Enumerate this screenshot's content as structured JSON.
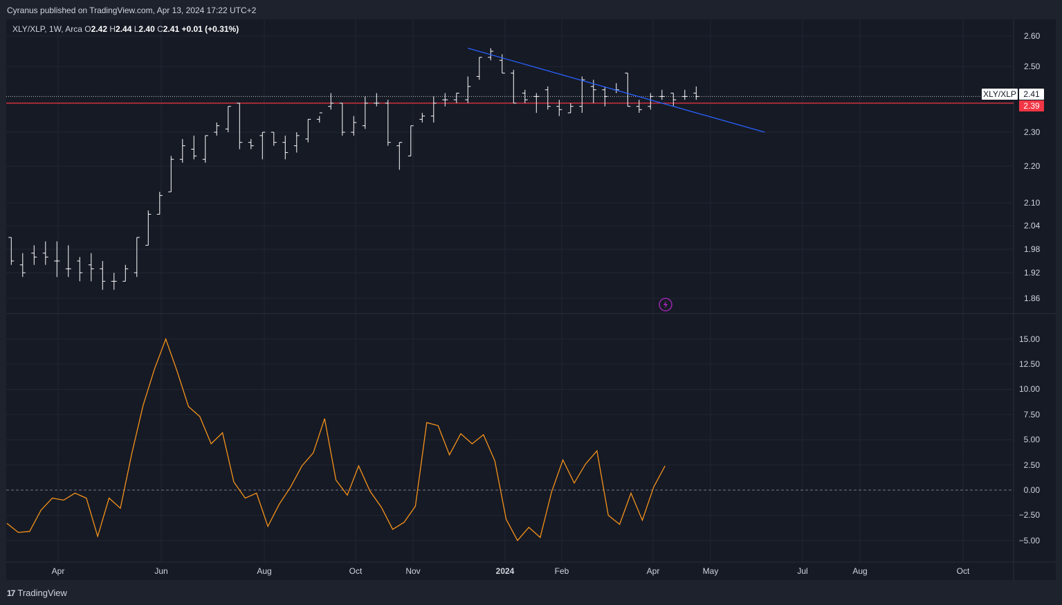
{
  "header": {
    "published_text": "Cyranus published on TradingView.com, Apr 13, 2024 17:22 UTC+2"
  },
  "legend": {
    "symbol": "XLY/XLP, 1W, Arca",
    "open_label": "O",
    "open": "2.42",
    "high_label": "H",
    "high": "2.44",
    "low_label": "L",
    "low": "2.40",
    "close_label": "C",
    "close": "2.41",
    "change": "+0.01 (+0.31%)"
  },
  "price_tags": {
    "symbol_tag": "XLY/XLP",
    "last_value": "2.41",
    "support_value": "2.39"
  },
  "footer": {
    "brand": "TradingView",
    "logo_mark": "17"
  },
  "colors": {
    "background": "#161a25",
    "bars": "#ffffff",
    "support_line": "#f23645",
    "trend_line": "#2962ff",
    "oscillator": "#f7931a",
    "flash_icon": "#9c27b0"
  },
  "icons": {
    "flash": "lightning-icon",
    "logo": "tradingview-logo-icon"
  },
  "chart_data": [
    {
      "type": "ohlc",
      "title": "XLY/XLP, 1W, Arca",
      "x_axis_labels": [
        "Apr",
        "Jun",
        "Aug",
        "Oct",
        "Nov",
        "2024",
        "Feb",
        "Apr",
        "May",
        "Jul",
        "Aug",
        "Oct"
      ],
      "y_axis_labels": [
        "2.60",
        "2.50",
        "2.30",
        "2.20",
        "2.10",
        "2.04",
        "1.98",
        "1.92",
        "1.86"
      ],
      "grid": true,
      "horizontal_line": {
        "value": 2.39,
        "label": "2.39"
      },
      "last_price": {
        "value": 2.41,
        "label": "2.41"
      },
      "trend_line": {
        "from": {
          "bar": 40,
          "value": 2.56
        },
        "to": {
          "bar": 66,
          "value": 2.3
        }
      },
      "bars": [
        [
          2.01,
          2.01,
          1.94,
          1.95
        ],
        [
          1.94,
          1.97,
          1.91,
          1.92
        ],
        [
          1.97,
          1.99,
          1.94,
          1.96
        ],
        [
          1.97,
          2.0,
          1.94,
          1.96
        ],
        [
          1.95,
          2.0,
          1.91,
          1.95
        ],
        [
          1.93,
          1.99,
          1.91,
          1.93
        ],
        [
          1.95,
          1.96,
          1.9,
          1.92
        ],
        [
          1.94,
          1.97,
          1.9,
          1.93
        ],
        [
          1.93,
          1.95,
          1.88,
          1.9
        ],
        [
          1.9,
          1.92,
          1.88,
          1.9
        ],
        [
          1.9,
          1.94,
          1.9,
          1.93
        ],
        [
          1.92,
          2.01,
          1.91,
          2.01
        ],
        [
          1.99,
          2.08,
          1.99,
          2.07
        ],
        [
          2.07,
          2.13,
          2.07,
          2.12
        ],
        [
          2.13,
          2.23,
          2.13,
          2.22
        ],
        [
          2.22,
          2.28,
          2.21,
          2.26
        ],
        [
          2.25,
          2.29,
          2.22,
          2.23
        ],
        [
          2.22,
          2.29,
          2.21,
          2.29
        ],
        [
          2.3,
          2.33,
          2.29,
          2.32
        ],
        [
          2.31,
          2.38,
          2.3,
          2.38
        ],
        [
          2.39,
          2.39,
          2.25,
          2.27
        ],
        [
          2.27,
          2.28,
          2.25,
          2.26
        ],
        [
          2.29,
          2.3,
          2.22,
          2.3
        ],
        [
          2.3,
          2.3,
          2.26,
          2.27
        ],
        [
          2.27,
          2.29,
          2.22,
          2.24
        ],
        [
          2.26,
          2.3,
          2.24,
          2.29
        ],
        [
          2.28,
          2.34,
          2.27,
          2.34
        ],
        [
          2.34,
          2.35,
          2.33,
          2.36
        ],
        [
          2.38,
          2.42,
          2.37,
          2.39
        ],
        [
          2.39,
          2.39,
          2.29,
          2.3
        ],
        [
          2.3,
          2.35,
          2.29,
          2.33
        ],
        [
          2.32,
          2.41,
          2.31,
          2.39
        ],
        [
          2.39,
          2.42,
          2.38,
          2.39
        ],
        [
          2.39,
          2.4,
          2.26,
          2.27
        ],
        [
          2.26,
          2.27,
          2.19,
          2.27
        ],
        [
          2.23,
          2.32,
          2.23,
          2.32
        ],
        [
          2.34,
          2.36,
          2.33,
          2.35
        ],
        [
          2.35,
          2.41,
          2.33,
          2.39
        ],
        [
          2.4,
          2.42,
          2.38,
          2.4
        ],
        [
          2.4,
          2.42,
          2.39,
          2.42
        ],
        [
          2.4,
          2.47,
          2.39,
          2.44
        ],
        [
          2.47,
          2.53,
          2.46,
          2.53
        ],
        [
          2.53,
          2.56,
          2.52,
          2.55
        ],
        [
          2.52,
          2.54,
          2.48,
          2.48
        ],
        [
          2.48,
          2.49,
          2.39,
          2.39
        ],
        [
          2.42,
          2.43,
          2.39,
          2.4
        ],
        [
          2.41,
          2.42,
          2.36,
          2.41
        ],
        [
          2.43,
          2.44,
          2.37,
          2.38
        ],
        [
          2.38,
          2.4,
          2.35,
          2.37
        ],
        [
          2.36,
          2.39,
          2.36,
          2.38
        ],
        [
          2.38,
          2.47,
          2.36,
          2.46
        ],
        [
          2.44,
          2.46,
          2.39,
          2.43
        ],
        [
          2.43,
          2.44,
          2.38,
          2.41
        ],
        [
          2.43,
          2.45,
          2.42,
          2.43
        ],
        [
          2.48,
          2.48,
          2.38,
          2.38
        ],
        [
          2.38,
          2.4,
          2.36,
          2.37
        ],
        [
          2.38,
          2.42,
          2.37,
          2.41
        ],
        [
          2.41,
          2.43,
          2.4,
          2.41
        ],
        [
          2.42,
          2.42,
          2.38,
          2.4
        ],
        [
          2.41,
          2.43,
          2.4,
          2.41
        ],
        [
          2.42,
          2.44,
          2.4,
          2.41
        ]
      ]
    },
    {
      "type": "line",
      "y_axis_labels": [
        "15.00",
        "12.50",
        "10.00",
        "7.50",
        "5.00",
        "2.50",
        "0.00",
        "−2.50",
        "−5.00"
      ],
      "zero_line": 0,
      "grid": true,
      "series": [
        {
          "values": [
            -3.3,
            -4.2,
            -4.1,
            -2,
            -0.8,
            -1,
            -0.3,
            -0.8,
            -4.6,
            -0.8,
            -1.8,
            3.6,
            8.4,
            12,
            15,
            11.8,
            8.3,
            7.3,
            4.6,
            5.7,
            0.8,
            -0.8,
            -0.3,
            -3.6,
            -1.4,
            0.3,
            2.4,
            3.7,
            7.1,
            1,
            -0.5,
            2.4,
            -0.1,
            -1.7,
            -3.9,
            -3.2,
            -1.6,
            6.7,
            6.4,
            3.5,
            5.6,
            4.6,
            5.5,
            2.9,
            -2.9,
            -5,
            -3.7,
            -4.7,
            -0.2,
            3,
            0.7,
            2.6,
            3.9,
            -2.5,
            -3.4,
            -0.3,
            -3,
            0.3,
            2.4
          ]
        }
      ]
    }
  ]
}
